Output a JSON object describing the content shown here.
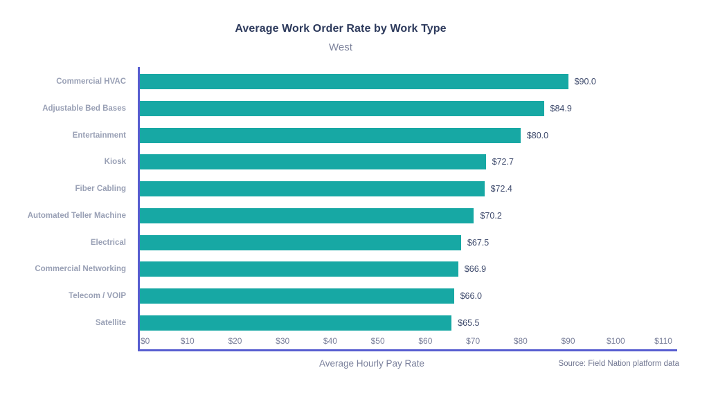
{
  "chart_data": {
    "type": "bar",
    "orientation": "horizontal",
    "title": "Average Work Order Rate by Work Type",
    "subtitle": "West",
    "xlabel": "Average Hourly Pay Rate",
    "source": "Source: Field Nation platform data",
    "categories": [
      "Commercial HVAC",
      "Adjustable Bed Bases",
      "Entertainment",
      "Kiosk",
      "Fiber Cabling",
      "Automated Teller Machine",
      "Electrical",
      "Commercial Networking",
      "Telecom / VOIP",
      "Satellite"
    ],
    "values": [
      90.0,
      84.9,
      80.0,
      72.7,
      72.4,
      70.2,
      67.5,
      66.9,
      66.0,
      65.5
    ],
    "value_labels": [
      "$90.0",
      "$84.9",
      "$80.0",
      "$72.7",
      "$72.4",
      "$70.2",
      "$67.5",
      "$66.9",
      "$66.0",
      "$65.5"
    ],
    "x_ticks": [
      0,
      10,
      20,
      30,
      40,
      50,
      60,
      70,
      80,
      90,
      100,
      110
    ],
    "x_tick_labels": [
      "$0",
      "$10",
      "$20",
      "$30",
      "$40",
      "$50",
      "$60",
      "$70",
      "$80",
      "$90",
      "$100",
      "$110"
    ],
    "xlim": [
      0,
      110
    ],
    "grid": false,
    "legend": null,
    "colors": {
      "bar": "#17A8A4",
      "axis": "#575DD0",
      "title": "#2D3A5C",
      "subtitle": "#7C829B",
      "category_label": "#99A0B5",
      "value_label": "#3E4A6C",
      "tick_label": "#787E99",
      "background": "#FFFFFF"
    }
  }
}
